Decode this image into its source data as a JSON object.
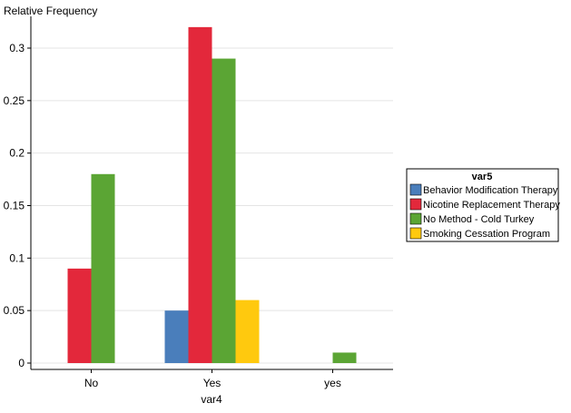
{
  "chart_data": {
    "type": "bar",
    "ylabel": "Relative Frequency",
    "xlabel": "var4",
    "categories": [
      "No",
      "Yes",
      "yes"
    ],
    "ylim": [
      0,
      0.325
    ],
    "yticks": [
      0,
      0.05,
      0.1,
      0.15,
      0.2,
      0.25,
      0.3
    ],
    "ytick_labels": [
      "0",
      "0.05",
      "0.1",
      "0.15",
      "0.2",
      "0.25",
      "0.3"
    ],
    "grid": true,
    "legend": {
      "title": "var5",
      "position": "right"
    },
    "series": [
      {
        "name": "Behavior Modification Therapy",
        "color": "#4a7ebb",
        "values": [
          0,
          0.05,
          0
        ]
      },
      {
        "name": "Nicotine Replacement Therapy",
        "color": "#e3283b",
        "values": [
          0.09,
          0.32,
          0
        ]
      },
      {
        "name": "No Method - Cold Turkey",
        "color": "#5ba534",
        "values": [
          0.18,
          0.29,
          0.01
        ]
      },
      {
        "name": "Smoking Cessation Program",
        "color": "#ffc90e",
        "values": [
          0,
          0.06,
          0
        ]
      }
    ]
  }
}
